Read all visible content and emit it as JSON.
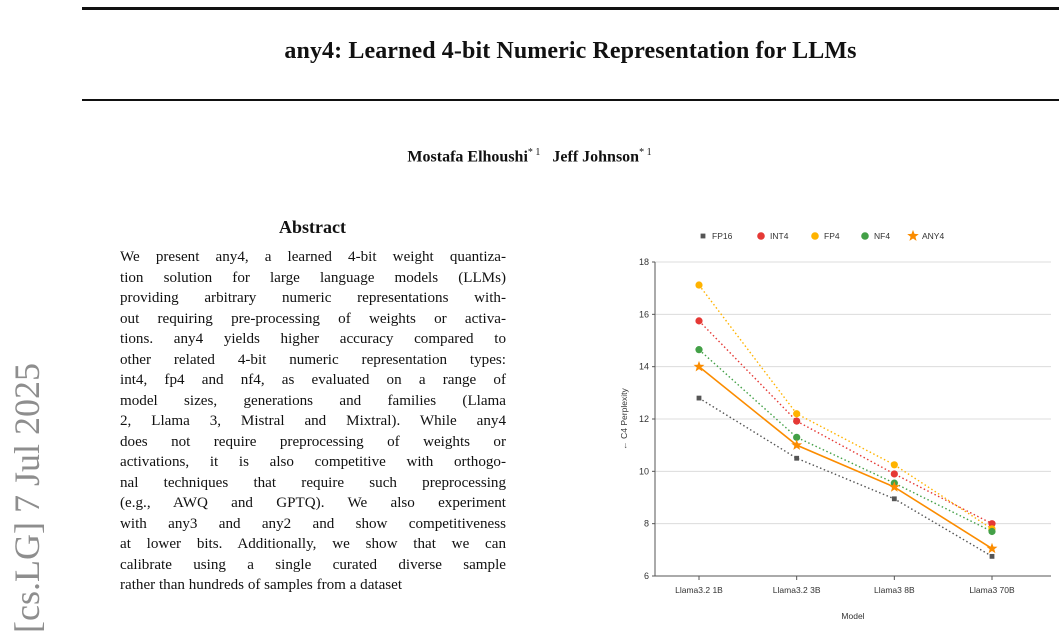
{
  "arxiv_id": "[cs.LG]  7 Jul 2025",
  "paper": {
    "title": "any4: Learned 4-bit Numeric Representation for LLMs",
    "authors": [
      {
        "name": "Mostafa Elhoushi",
        "marks": "* 1"
      },
      {
        "name": "Jeff Johnson",
        "marks": "* 1"
      }
    ]
  },
  "abstract": {
    "heading": "Abstract",
    "lines": [
      "We present any4, a learned 4-bit weight quantiza-",
      "tion solution for large language models (LLMs)",
      "providing arbitrary numeric representations with-",
      "out requiring pre-processing of weights or activa-",
      "tions. any4 yields higher accuracy compared to",
      "other related 4-bit numeric representation types:",
      "int4, fp4 and nf4, as evaluated on a range of",
      "model sizes, generations and families (Llama",
      "2, Llama 3, Mistral and Mixtral). While any4",
      "does not require preprocessing of weights or",
      "activations, it is also competitive with orthogo-",
      "nal techniques that require such preprocessing",
      "(e.g., AWQ and GPTQ). We also experiment",
      "with any3 and any2 and show competitiveness",
      "at lower bits. Additionally, we show that we can",
      "calibrate using a single curated diverse sample",
      "rather than hundreds of samples from a dataset"
    ]
  },
  "chart_data": {
    "type": "line",
    "categories": [
      "Llama3.2 1B",
      "Llama3.2 3B",
      "Llama3 8B",
      "Llama3 70B"
    ],
    "series": [
      {
        "name": "FP16",
        "values": [
          12.8,
          10.5,
          8.95,
          6.75
        ],
        "color": "#555555",
        "marker": "square",
        "line": "dotted"
      },
      {
        "name": "INT4",
        "values": [
          15.75,
          11.92,
          9.9,
          8.0
        ],
        "color": "#e53935",
        "marker": "circle",
        "line": "dotted"
      },
      {
        "name": "FP4",
        "values": [
          17.12,
          12.2,
          10.25,
          7.8
        ],
        "color": "#ffb300",
        "marker": "circle",
        "line": "dotted"
      },
      {
        "name": "NF4",
        "values": [
          14.65,
          11.3,
          9.55,
          7.7
        ],
        "color": "#43a047",
        "marker": "circle",
        "line": "dotted"
      },
      {
        "name": "ANY4",
        "values": [
          14.0,
          11.0,
          9.4,
          7.05
        ],
        "color": "#fb8c00",
        "marker": "star",
        "line": "solid"
      }
    ],
    "xlabel": "Model",
    "ylabel": "← C4 Perplexity",
    "ylim": [
      6,
      18
    ],
    "yticks": [
      6,
      8,
      10,
      12,
      14,
      16,
      18
    ],
    "grid": true,
    "legend_position": "top"
  }
}
